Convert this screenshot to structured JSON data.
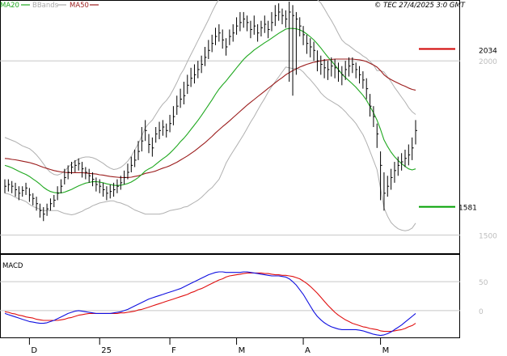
{
  "header": {
    "legend": [
      {
        "label": "MA20",
        "color": "#1fa81f"
      },
      {
        "label": "BBands",
        "color": "#aaaaaa"
      },
      {
        "label": "MA50",
        "color": "#9b1c1c"
      }
    ],
    "copyright": "© TEC 27/4/2025 3:0 GMT"
  },
  "colors": {
    "price": "#000000",
    "ma20": "#1fa81f",
    "ma50": "#9b1c1c",
    "bbands": "#b0b0b0",
    "macd": "#1010e0",
    "signal": "#e01010",
    "grid": "#c8c8c8",
    "resistance": "#d00000",
    "support": "#00a000"
  },
  "chart_data": [
    {
      "type": "line",
      "title": "",
      "ylim": [
        1450,
        2170
      ],
      "y_ticks": [
        1500,
        2000
      ],
      "x_ticks": [
        "D",
        "25",
        "F",
        "M",
        "A",
        "M"
      ],
      "grid": true,
      "levels": [
        {
          "name": "resistance",
          "value": 2034,
          "label": "2034"
        },
        {
          "name": "support",
          "value": 1581,
          "label": "1581"
        }
      ],
      "price_close": [
        1640,
        1645,
        1640,
        1630,
        1620,
        1628,
        1635,
        1615,
        1605,
        1590,
        1570,
        1560,
        1575,
        1590,
        1600,
        1620,
        1640,
        1665,
        1680,
        1695,
        1700,
        1705,
        1690,
        1680,
        1670,
        1660,
        1645,
        1640,
        1630,
        1620,
        1625,
        1630,
        1640,
        1650,
        1665,
        1680,
        1700,
        1715,
        1740,
        1770,
        1800,
        1760,
        1750,
        1790,
        1800,
        1810,
        1800,
        1820,
        1840,
        1870,
        1890,
        1900,
        1930,
        1950,
        1960,
        1975,
        1990,
        2010,
        2030,
        2050,
        2070,
        2080,
        2060,
        2040,
        2070,
        2080,
        2100,
        2110,
        2120,
        2110,
        2090,
        2100,
        2080,
        2095,
        2105,
        2090,
        2110,
        2130,
        2140,
        2130,
        2120,
        2140,
        2130,
        2120,
        2100,
        2075,
        2050,
        2040,
        2030,
        2000,
        1990,
        1980,
        1975,
        1985,
        1980,
        1970,
        1960,
        1975,
        1985,
        1990,
        1975,
        1960,
        1945,
        1920,
        1870,
        1840,
        1790,
        1700,
        1620,
        1640,
        1665,
        1685,
        1700,
        1710,
        1720,
        1730,
        1750,
        1800
      ],
      "price_high": [
        1660,
        1660,
        1655,
        1650,
        1640,
        1640,
        1650,
        1635,
        1620,
        1610,
        1590,
        1580,
        1590,
        1605,
        1615,
        1640,
        1660,
        1690,
        1700,
        1710,
        1715,
        1720,
        1710,
        1695,
        1690,
        1680,
        1665,
        1660,
        1650,
        1640,
        1645,
        1650,
        1660,
        1670,
        1685,
        1705,
        1725,
        1745,
        1770,
        1810,
        1830,
        1790,
        1780,
        1810,
        1825,
        1830,
        1820,
        1845,
        1870,
        1900,
        1920,
        1940,
        1960,
        1980,
        1990,
        2000,
        2015,
        2040,
        2060,
        2075,
        2095,
        2105,
        2090,
        2065,
        2090,
        2105,
        2125,
        2140,
        2140,
        2130,
        2115,
        2130,
        2105,
        2115,
        2130,
        2115,
        2140,
        2160,
        2165,
        2150,
        2145,
        2170,
        2160,
        2140,
        2125,
        2100,
        2075,
        2065,
        2055,
        2030,
        2015,
        2005,
        2000,
        2010,
        2005,
        1995,
        1985,
        2000,
        2010,
        2010,
        1995,
        1985,
        1970,
        1950,
        1905,
        1870,
        1820,
        1740,
        1680,
        1670,
        1690,
        1710,
        1725,
        1735,
        1745,
        1760,
        1780,
        1830
      ],
      "price_low": [
        1620,
        1625,
        1620,
        1610,
        1600,
        1610,
        1615,
        1595,
        1585,
        1570,
        1550,
        1540,
        1555,
        1570,
        1580,
        1600,
        1620,
        1645,
        1660,
        1675,
        1680,
        1685,
        1665,
        1660,
        1650,
        1640,
        1625,
        1620,
        1610,
        1600,
        1605,
        1610,
        1620,
        1630,
        1645,
        1660,
        1680,
        1695,
        1715,
        1740,
        1770,
        1735,
        1725,
        1765,
        1775,
        1785,
        1780,
        1795,
        1815,
        1845,
        1865,
        1875,
        1905,
        1925,
        1935,
        1950,
        1965,
        1985,
        2005,
        2025,
        2045,
        2055,
        2035,
        2015,
        2045,
        2055,
        2075,
        2085,
        2095,
        2085,
        2065,
        2075,
        2055,
        2070,
        2080,
        2065,
        2085,
        2100,
        2115,
        2105,
        2095,
        1940,
        1900,
        1960,
        2070,
        2045,
        2020,
        2010,
        2000,
        1970,
        1960,
        1950,
        1945,
        1955,
        1950,
        1940,
        1930,
        1945,
        1955,
        1965,
        1950,
        1935,
        1920,
        1890,
        1840,
        1810,
        1750,
        1600,
        1570,
        1610,
        1630,
        1650,
        1670,
        1685,
        1695,
        1700,
        1715,
        1760
      ],
      "ma20_value": [
        1700,
        1697,
        1693,
        1688,
        1683,
        1678,
        1674,
        1668,
        1661,
        1654,
        1646,
        1637,
        1630,
        1625,
        1622,
        1621,
        1621,
        1623,
        1627,
        1631,
        1636,
        1641,
        1645,
        1649,
        1651,
        1653,
        1653,
        1652,
        1650,
        1647,
        1645,
        1643,
        1642,
        1643,
        1645,
        1648,
        1652,
        1658,
        1665,
        1674,
        1684,
        1690,
        1695,
        1703,
        1711,
        1719,
        1726,
        1735,
        1745,
        1756,
        1768,
        1778,
        1790,
        1803,
        1816,
        1829,
        1843,
        1858,
        1873,
        1888,
        1904,
        1919,
        1931,
        1942,
        1955,
        1967,
        1980,
        1992,
        2004,
        2014,
        2022,
        2031,
        2038,
        2045,
        2052,
        2058,
        2065,
        2072,
        2079,
        2085,
        2091,
        2093,
        2093,
        2092,
        2089,
        2084,
        2077,
        2069,
        2060,
        2049,
        2037,
        2024,
        2011,
        2000,
        1988,
        1975,
        1962,
        1952,
        1943,
        1934,
        1924,
        1913,
        1901,
        1887,
        1869,
        1851,
        1830,
        1803,
        1773,
        1754,
        1738,
        1725,
        1714,
        1705,
        1697,
        1690,
        1687,
        1690
      ],
      "ma50_value": [
        1720,
        1719,
        1717,
        1716,
        1714,
        1712,
        1710,
        1708,
        1705,
        1702,
        1698,
        1694,
        1691,
        1688,
        1685,
        1683,
        1681,
        1680,
        1679,
        1679,
        1679,
        1679,
        1679,
        1678,
        1677,
        1676,
        1675,
        1673,
        1672,
        1670,
        1668,
        1667,
        1666,
        1665,
        1665,
        1665,
        1666,
        1668,
        1670,
        1673,
        1677,
        1679,
        1681,
        1684,
        1688,
        1692,
        1695,
        1699,
        1704,
        1709,
        1715,
        1721,
        1727,
        1734,
        1741,
        1749,
        1757,
        1765,
        1774,
        1783,
        1793,
        1802,
        1811,
        1819,
        1828,
        1837,
        1846,
        1855,
        1864,
        1873,
        1881,
        1889,
        1897,
        1905,
        1913,
        1921,
        1929,
        1937,
        1945,
        1952,
        1960,
        1966,
        1972,
        1977,
        1982,
        1986,
        1990,
        1993,
        1996,
        1998,
        2000,
        2002,
        2003,
        2004,
        2005,
        2005,
        2005,
        2005,
        2005,
        2005,
        2004,
        2003,
        2001,
        1998,
        1993,
        1988,
        1982,
        1972,
        1960,
        1952,
        1946,
        1941,
        1936,
        1931,
        1927,
        1922,
        1918,
        1916
      ],
      "bb_upper": [
        1780,
        1776,
        1772,
        1768,
        1762,
        1756,
        1752,
        1748,
        1740,
        1730,
        1718,
        1704,
        1690,
        1680,
        1674,
        1672,
        1676,
        1684,
        1694,
        1704,
        1712,
        1718,
        1722,
        1724,
        1724,
        1722,
        1718,
        1712,
        1706,
        1698,
        1692,
        1688,
        1690,
        1694,
        1702,
        1712,
        1726,
        1744,
        1762,
        1784,
        1808,
        1820,
        1830,
        1846,
        1862,
        1876,
        1886,
        1900,
        1918,
        1938,
        1960,
        1976,
        1998,
        2018,
        2038,
        2058,
        2078,
        2098,
        2118,
        2140,
        2160,
        2178,
        2180,
        2178,
        2186,
        2194,
        2204,
        2212,
        2220,
        2222,
        2220,
        2222,
        2218,
        2214,
        2212,
        2206,
        2204,
        2204,
        2204,
        2202,
        2200,
        2206,
        2208,
        2206,
        2202,
        2200,
        2198,
        2192,
        2186,
        2176,
        2166,
        2150,
        2132,
        2116,
        2098,
        2078,
        2060,
        2050,
        2044,
        2036,
        2028,
        2022,
        2014,
        2008,
        1998,
        1988,
        1972,
        1972,
        1968,
        1954,
        1940,
        1924,
        1910,
        1896,
        1882,
        1866,
        1854,
        1846
      ],
      "bb_lower": [
        1620,
        1618,
        1614,
        1608,
        1604,
        1600,
        1596,
        1588,
        1582,
        1578,
        1574,
        1570,
        1570,
        1570,
        1570,
        1570,
        1566,
        1562,
        1560,
        1558,
        1560,
        1564,
        1568,
        1574,
        1578,
        1584,
        1588,
        1592,
        1594,
        1596,
        1598,
        1598,
        1594,
        1592,
        1588,
        1584,
        1578,
        1572,
        1568,
        1564,
        1560,
        1560,
        1560,
        1560,
        1560,
        1562,
        1566,
        1570,
        1572,
        1574,
        1576,
        1580,
        1582,
        1588,
        1594,
        1600,
        1608,
        1618,
        1628,
        1636,
        1648,
        1660,
        1682,
        1706,
        1724,
        1740,
        1756,
        1772,
        1788,
        1806,
        1824,
        1840,
        1858,
        1876,
        1892,
        1910,
        1926,
        1940,
        1954,
        1968,
        1982,
        1980,
        1978,
        1978,
        1976,
        1968,
        1956,
        1946,
        1934,
        1922,
        1908,
        1898,
        1890,
        1884,
        1878,
        1872,
        1864,
        1854,
        1842,
        1832,
        1820,
        1804,
        1788,
        1766,
        1740,
        1714,
        1688,
        1634,
        1578,
        1554,
        1536,
        1526,
        1518,
        1514,
        1512,
        1514,
        1520,
        1534
      ]
    },
    {
      "type": "line",
      "title": "MACD",
      "ylim": [
        -45,
        95
      ],
      "y_ticks": [
        0,
        50
      ],
      "grid": true,
      "series": [
        {
          "name": "",
          "values": [
            -5,
            -7,
            -9,
            -11,
            -13,
            -15,
            -17,
            -19,
            -20,
            -21,
            -22,
            -22,
            -21,
            -19,
            -17,
            -14,
            -11,
            -8,
            -5,
            -3,
            -1,
            0,
            -1,
            -2,
            -3,
            -4,
            -5,
            -5,
            -5,
            -5,
            -5,
            -4,
            -3,
            -2,
            0,
            2,
            5,
            8,
            11,
            14,
            17,
            20,
            22,
            24,
            26,
            28,
            30,
            32,
            34,
            36,
            38,
            41,
            44,
            47,
            50,
            53,
            56,
            59,
            62,
            64,
            66,
            67,
            67,
            66,
            66,
            66,
            66,
            66,
            67,
            67,
            66,
            65,
            64,
            63,
            62,
            61,
            60,
            60,
            60,
            59,
            58,
            55,
            50,
            44,
            36,
            28,
            18,
            8,
            -2,
            -10,
            -16,
            -21,
            -25,
            -28,
            -30,
            -32,
            -33,
            -33,
            -33,
            -33,
            -33,
            -34,
            -35,
            -37,
            -39,
            -41,
            -42,
            -43,
            -42,
            -40,
            -37,
            -33,
            -29,
            -25,
            -20,
            -15,
            -10,
            -5
          ]
        },
        {
          "name": "",
          "values": [
            -2,
            -3,
            -5,
            -6,
            -8,
            -9,
            -11,
            -12,
            -13,
            -15,
            -16,
            -17,
            -17,
            -17,
            -17,
            -17,
            -16,
            -15,
            -13,
            -12,
            -10,
            -8,
            -7,
            -6,
            -5,
            -5,
            -5,
            -5,
            -5,
            -5,
            -5,
            -5,
            -5,
            -4,
            -4,
            -3,
            -2,
            -1,
            1,
            2,
            4,
            6,
            8,
            10,
            12,
            14,
            16,
            18,
            20,
            22,
            24,
            26,
            28,
            31,
            33,
            36,
            38,
            41,
            44,
            47,
            50,
            53,
            55,
            58,
            60,
            61,
            62,
            63,
            64,
            65,
            65,
            65,
            65,
            65,
            64,
            64,
            63,
            62,
            62,
            61,
            61,
            60,
            59,
            57,
            55,
            51,
            47,
            42,
            36,
            30,
            23,
            16,
            9,
            3,
            -3,
            -8,
            -12,
            -16,
            -19,
            -22,
            -24,
            -26,
            -28,
            -29,
            -31,
            -32,
            -33,
            -35,
            -36,
            -36,
            -36,
            -35,
            -34,
            -33,
            -31,
            -28,
            -26,
            -22
          ]
        }
      ]
    }
  ]
}
